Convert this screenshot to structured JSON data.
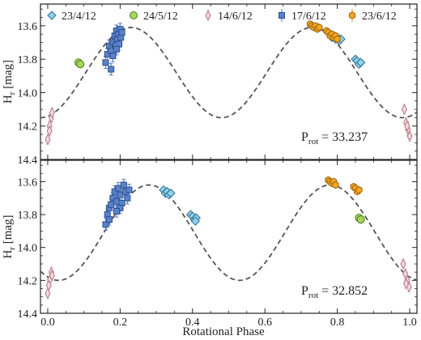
{
  "chart_data": [
    {
      "type": "scatter",
      "title": "",
      "xlabel": "",
      "ylabel": "Hr [mag]",
      "ylabel_main": "H",
      "ylabel_sub": "r",
      "ylabel_unit": " [mag]",
      "xlim": [
        -0.02,
        1.02
      ],
      "ylim": [
        14.4,
        13.47
      ],
      "y_inverted": true,
      "yticks": [
        13.6,
        13.8,
        14.0,
        14.2,
        14.4
      ],
      "ytick_labels": [
        "13.6",
        "13.8",
        "14.0",
        "14.2",
        "14.4"
      ],
      "annotation": {
        "prefix": "P",
        "sub": "rot",
        "text": " = 33.237"
      },
      "legend": {
        "placement": "top",
        "entries": [
          {
            "label": "23/4/12",
            "marker": "diamond",
            "color": "#8fd0ea",
            "edge": "#2d6f8e"
          },
          {
            "label": "24/5/12",
            "marker": "circle",
            "color": "#a7d65a",
            "edge": "#4c7a1d"
          },
          {
            "label": "14/6/12",
            "marker": "thin-diamond",
            "color": "#f3d6dc",
            "edge": "#b07a86"
          },
          {
            "label": "17/6/12",
            "marker": "square",
            "color": "#5b82c9",
            "edge": "#2b4f8f"
          },
          {
            "label": "23/6/12",
            "marker": "hexagon",
            "color": "#f6a623",
            "edge": "#9b6410"
          }
        ]
      },
      "model": {
        "mean": 13.88,
        "amplitude": 0.27,
        "max_phase": 0.23,
        "period_phase": 0.5
      },
      "series": [
        {
          "name": "23/4/12",
          "marker": "diamond",
          "color": "#8fd0ea",
          "edge": "#2d6f8e",
          "err": 0.0,
          "x": [
            0.78,
            0.785,
            0.79,
            0.795,
            0.8,
            0.805,
            0.81,
            0.85,
            0.855,
            0.86,
            0.865
          ],
          "y": [
            13.65,
            13.67,
            13.66,
            13.68,
            13.67,
            13.69,
            13.68,
            13.8,
            13.81,
            13.83,
            13.82
          ]
        },
        {
          "name": "24/5/12",
          "marker": "circle",
          "color": "#a7d65a",
          "edge": "#4c7a1d",
          "err": 0.0,
          "x": [
            0.085,
            0.09
          ],
          "y": [
            13.82,
            13.83
          ]
        },
        {
          "name": "14/6/12",
          "marker": "thin-diamond",
          "color": "#f3d6dc",
          "edge": "#b07a86",
          "err": 0.03,
          "x": [
            0.0,
            0.005,
            0.01,
            0.005,
            0.012,
            0.985,
            0.99,
            0.995,
            1.0,
            0.993
          ],
          "y": [
            14.28,
            14.2,
            14.15,
            14.23,
            14.12,
            14.1,
            14.18,
            14.22,
            14.26,
            14.2
          ]
        },
        {
          "name": "17/6/12",
          "marker": "square",
          "color": "#5b82c9",
          "edge": "#2b4f8f",
          "err": 0.035,
          "x": [
            0.16,
            0.165,
            0.17,
            0.175,
            0.18,
            0.185,
            0.188,
            0.19,
            0.192,
            0.195,
            0.197,
            0.2,
            0.202,
            0.205,
            0.19,
            0.18,
            0.175
          ],
          "y": [
            13.82,
            13.77,
            13.72,
            13.75,
            13.7,
            13.66,
            13.72,
            13.63,
            13.68,
            13.65,
            13.71,
            13.62,
            13.67,
            13.64,
            13.74,
            13.78,
            13.86
          ]
        },
        {
          "name": "23/6/12",
          "marker": "hexagon",
          "color": "#f6a623",
          "edge": "#9b6410",
          "err": 0.015,
          "x": [
            0.725,
            0.73,
            0.735,
            0.74,
            0.745,
            0.75,
            0.77,
            0.775,
            0.78,
            0.785,
            0.79,
            0.795,
            0.8
          ],
          "y": [
            13.59,
            13.6,
            13.61,
            13.6,
            13.62,
            13.61,
            13.63,
            13.64,
            13.66,
            13.65,
            13.67,
            13.66,
            13.68
          ]
        }
      ]
    },
    {
      "type": "scatter",
      "title": "",
      "xlabel": "Rotational Phase",
      "ylabel": "Hr [mag]",
      "ylabel_main": "H",
      "ylabel_sub": "r",
      "ylabel_unit": " [mag]",
      "xlim": [
        -0.02,
        1.02
      ],
      "ylim": [
        14.4,
        13.47
      ],
      "y_inverted": true,
      "xticks": [
        0.0,
        0.2,
        0.4,
        0.6,
        0.8,
        1.0
      ],
      "xtick_labels": [
        "0.0",
        "0.2",
        "0.4",
        "0.6",
        "0.8",
        "1.0"
      ],
      "yticks": [
        13.6,
        13.8,
        14.0,
        14.2,
        14.4
      ],
      "ytick_labels": [
        "13.6",
        "13.8",
        "14.0",
        "14.2",
        "14.4"
      ],
      "annotation": {
        "prefix": "P",
        "sub": "rot",
        "text": " = 32.852"
      },
      "model": {
        "mean": 13.91,
        "amplitude": 0.29,
        "max_phase": 0.28,
        "period_phase": 0.5
      },
      "series": [
        {
          "name": "23/4/12",
          "marker": "diamond",
          "color": "#8fd0ea",
          "edge": "#2d6f8e",
          "err": 0.0,
          "x": [
            0.32,
            0.325,
            0.33,
            0.335,
            0.34,
            0.395,
            0.4,
            0.405,
            0.41,
            0.408
          ],
          "y": [
            13.65,
            13.67,
            13.66,
            13.68,
            13.67,
            13.8,
            13.81,
            13.83,
            13.82,
            13.84
          ]
        },
        {
          "name": "24/5/12",
          "marker": "circle",
          "color": "#a7d65a",
          "edge": "#4c7a1d",
          "err": 0.0,
          "x": [
            0.86,
            0.865
          ],
          "y": [
            13.82,
            13.83
          ]
        },
        {
          "name": "14/6/12",
          "marker": "thin-diamond",
          "color": "#f3d6dc",
          "edge": "#b07a86",
          "err": 0.03,
          "x": [
            0.0,
            0.005,
            0.01,
            0.003,
            0.012,
            0.982,
            0.988,
            0.993,
            0.998,
            0.99
          ],
          "y": [
            14.28,
            14.2,
            14.15,
            14.23,
            14.17,
            14.1,
            14.16,
            14.2,
            14.24,
            14.22
          ]
        },
        {
          "name": "17/6/12",
          "marker": "square",
          "color": "#5b82c9",
          "edge": "#2b4f8f",
          "err": 0.035,
          "x": [
            0.16,
            0.165,
            0.17,
            0.175,
            0.18,
            0.185,
            0.19,
            0.195,
            0.2,
            0.205,
            0.21,
            0.215,
            0.22,
            0.225,
            0.2,
            0.19,
            0.17
          ],
          "y": [
            13.86,
            13.8,
            13.76,
            13.74,
            13.7,
            13.66,
            13.72,
            13.64,
            13.68,
            13.73,
            13.62,
            13.66,
            13.7,
            13.65,
            13.76,
            13.78,
            13.83
          ]
        },
        {
          "name": "23/6/12",
          "marker": "hexagon",
          "color": "#f6a623",
          "edge": "#9b6410",
          "err": 0.015,
          "x": [
            0.775,
            0.78,
            0.785,
            0.79,
            0.795,
            0.845,
            0.85,
            0.855,
            0.86
          ],
          "y": [
            13.59,
            13.6,
            13.61,
            13.6,
            13.62,
            13.63,
            13.64,
            13.66,
            13.65
          ]
        }
      ]
    }
  ]
}
